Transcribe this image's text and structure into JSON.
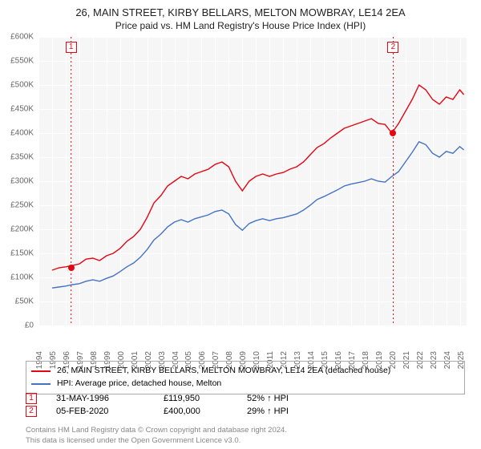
{
  "title": "26, MAIN STREET, KIRBY BELLARS, MELTON MOWBRAY, LE14 2EA",
  "subtitle": "Price paid vs. HM Land Registry's House Price Index (HPI)",
  "chart": {
    "type": "line",
    "background_color": "#f6f6f6",
    "grid_color": "#ffffff",
    "axis_label_color": "#666666",
    "ylim": [
      0,
      600000
    ],
    "ytick_step": 50000,
    "ytick_labels": [
      "£0",
      "£50K",
      "£100K",
      "£150K",
      "£200K",
      "£250K",
      "£300K",
      "£350K",
      "£400K",
      "£450K",
      "£500K",
      "£550K",
      "£600K"
    ],
    "xlim": [
      1994,
      2025.5
    ],
    "xticks": [
      1994,
      1995,
      1996,
      1997,
      1998,
      1999,
      2000,
      2001,
      2002,
      2003,
      2004,
      2005,
      2006,
      2007,
      2008,
      2009,
      2010,
      2011,
      2012,
      2013,
      2014,
      2015,
      2016,
      2017,
      2018,
      2019,
      2020,
      2021,
      2022,
      2023,
      2024,
      2025
    ],
    "series": [
      {
        "name": "price_paid",
        "color": "#e30613",
        "stroke_width": 1.4,
        "x": [
          1995.0,
          1995.5,
          1996.0,
          1996.5,
          1997.0,
          1997.5,
          1998.0,
          1998.5,
          1999.0,
          1999.5,
          2000.0,
          2000.5,
          2001.0,
          2001.5,
          2002.0,
          2002.5,
          2003.0,
          2003.5,
          2004.0,
          2004.5,
          2005.0,
          2005.5,
          2006.0,
          2006.5,
          2007.0,
          2007.5,
          2008.0,
          2008.5,
          2009.0,
          2009.5,
          2010.0,
          2010.5,
          2011.0,
          2011.5,
          2012.0,
          2012.5,
          2013.0,
          2013.5,
          2014.0,
          2014.5,
          2015.0,
          2015.5,
          2016.0,
          2016.5,
          2017.0,
          2017.5,
          2018.0,
          2018.5,
          2019.0,
          2019.5,
          2020.0,
          2020.5,
          2021.0,
          2021.5,
          2022.0,
          2022.5,
          2023.0,
          2023.5,
          2024.0,
          2024.5,
          2025.0,
          2025.3
        ],
        "y": [
          115000,
          120000,
          122000,
          125000,
          128000,
          138000,
          140000,
          135000,
          145000,
          150000,
          160000,
          175000,
          185000,
          200000,
          225000,
          255000,
          270000,
          290000,
          300000,
          310000,
          305000,
          315000,
          320000,
          325000,
          335000,
          340000,
          330000,
          300000,
          280000,
          300000,
          310000,
          315000,
          310000,
          315000,
          318000,
          325000,
          330000,
          340000,
          355000,
          370000,
          378000,
          390000,
          400000,
          410000,
          415000,
          420000,
          425000,
          430000,
          420000,
          418000,
          400000,
          420000,
          445000,
          470000,
          500000,
          490000,
          470000,
          460000,
          475000,
          470000,
          490000,
          480000
        ]
      },
      {
        "name": "hpi",
        "color": "#4472c4",
        "stroke_width": 1.2,
        "x": [
          1995.0,
          1995.5,
          1996.0,
          1996.5,
          1997.0,
          1997.5,
          1998.0,
          1998.5,
          1999.0,
          1999.5,
          2000.0,
          2000.5,
          2001.0,
          2001.5,
          2002.0,
          2002.5,
          2003.0,
          2003.5,
          2004.0,
          2004.5,
          2005.0,
          2005.5,
          2006.0,
          2006.5,
          2007.0,
          2007.5,
          2008.0,
          2008.5,
          2009.0,
          2009.5,
          2010.0,
          2010.5,
          2011.0,
          2011.5,
          2012.0,
          2012.5,
          2013.0,
          2013.5,
          2014.0,
          2014.5,
          2015.0,
          2015.5,
          2016.0,
          2016.5,
          2017.0,
          2017.5,
          2018.0,
          2018.5,
          2019.0,
          2019.5,
          2020.0,
          2020.5,
          2021.0,
          2021.5,
          2022.0,
          2022.5,
          2023.0,
          2023.5,
          2024.0,
          2024.5,
          2025.0,
          2025.3
        ],
        "y": [
          78000,
          80000,
          82000,
          85000,
          87000,
          92000,
          95000,
          92000,
          98000,
          103000,
          112000,
          122000,
          130000,
          142000,
          158000,
          178000,
          190000,
          205000,
          215000,
          220000,
          215000,
          222000,
          226000,
          230000,
          237000,
          240000,
          232000,
          210000,
          198000,
          212000,
          218000,
          222000,
          218000,
          222000,
          224000,
          228000,
          232000,
          240000,
          250000,
          262000,
          268000,
          275000,
          282000,
          290000,
          294000,
          297000,
          300000,
          305000,
          300000,
          298000,
          310000,
          320000,
          340000,
          360000,
          382000,
          376000,
          358000,
          350000,
          362000,
          358000,
          372000,
          365000
        ]
      }
    ],
    "events": [
      {
        "id": "1",
        "x": 1996.4,
        "price": 119950,
        "color": "#e30613"
      },
      {
        "id": "2",
        "x": 2020.1,
        "price": 400000,
        "color": "#e30613"
      }
    ]
  },
  "legend": {
    "border_color": "#aaaaaa",
    "items": [
      {
        "color": "#e30613",
        "label": "26, MAIN STREET, KIRBY BELLARS, MELTON MOWBRAY, LE14 2EA (detached house)"
      },
      {
        "color": "#4472c4",
        "label": "HPI: Average price, detached house, Melton"
      }
    ]
  },
  "events_table": [
    {
      "id": "1",
      "color": "#e30613",
      "date": "31-MAY-1996",
      "price": "£119,950",
      "hpi": "52% ↑ HPI"
    },
    {
      "id": "2",
      "color": "#e30613",
      "date": "05-FEB-2020",
      "price": "£400,000",
      "hpi": "29% ↑ HPI"
    }
  ],
  "footnote_line1": "Contains HM Land Registry data © Crown copyright and database right 2024.",
  "footnote_line2": "This data is licensed under the Open Government Licence v3.0."
}
